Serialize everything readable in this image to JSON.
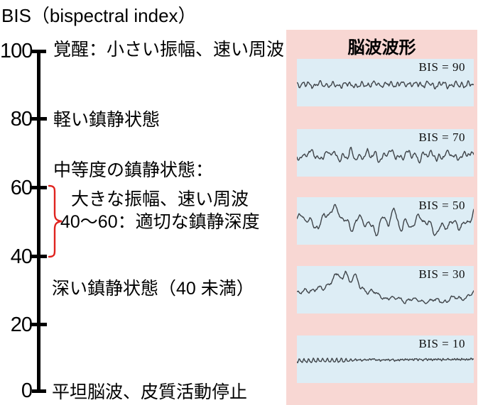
{
  "title": "BIS（bispectral index）",
  "axis": {
    "ticks": [
      "100",
      "80",
      "60",
      "40",
      "20",
      "0"
    ],
    "labels": {
      "awake": "覚醒：小さい振幅、速い周波",
      "light_sedation": "軽い鎮静状態",
      "moderate_line1": "中等度の鎮静状態：",
      "moderate_line2": "大きな振幅、速い周波",
      "moderate_line3": "40〜60：適切な鎮静深度",
      "deep_sedation": "深い鎮静状態（40 未満）",
      "flat_eeg": "平坦脳波、皮質活動停止"
    },
    "bracket_range": "40-60",
    "bracket_color": "#e0231e"
  },
  "panel": {
    "title": "脳波波形",
    "background": "#f8d7d3",
    "box_background": "#ddedf5",
    "wave_color": "#3f4449"
  },
  "waveforms": [
    {
      "label": "BIS = 90",
      "bis": 90,
      "character": "small amplitude, fast frequency",
      "profile": {
        "seed": 3,
        "noise": 0.02,
        "base": [
          [
            0,
            0.54
          ],
          [
            1,
            0.54
          ]
        ],
        "components": [
          {
            "freq": 30,
            "amp": 0.04
          },
          {
            "freq": 13,
            "amp": 0.03
          },
          {
            "freq": 55,
            "amp": 0.018
          }
        ]
      }
    },
    {
      "label": "BIS = 70",
      "bis": 70,
      "character": "medium amplitude with bursts",
      "profile": {
        "seed": 7,
        "noise": 0.025,
        "base": [
          [
            0,
            0.55
          ],
          [
            1,
            0.55
          ]
        ],
        "components": [
          {
            "freq": 22,
            "amp": 0.085,
            "env": true,
            "centers": [
              0.3,
              0.42,
              0.7
            ],
            "sigma": 0.05,
            "floor": 0.5
          },
          {
            "freq": 9,
            "amp": 0.06
          },
          {
            "freq": 42,
            "amp": 0.025
          }
        ]
      }
    },
    {
      "label": "BIS = 50",
      "bis": 50,
      "character": "large amplitude, fast frequency",
      "profile": {
        "seed": 11,
        "noise": 0.025,
        "base": [
          [
            0,
            0.5
          ],
          [
            0.08,
            0.55
          ],
          [
            0.16,
            0.4
          ],
          [
            0.24,
            0.35
          ],
          [
            0.32,
            0.55
          ],
          [
            0.4,
            0.6
          ],
          [
            0.5,
            0.5
          ],
          [
            0.6,
            0.5
          ],
          [
            0.68,
            0.55
          ],
          [
            0.78,
            0.6
          ],
          [
            0.88,
            0.65
          ],
          [
            0.95,
            0.5
          ],
          [
            1,
            0.3
          ]
        ],
        "components": [
          {
            "freq": 15,
            "amp": 0.16,
            "env": true,
            "centers": [
              0.5,
              0.57
            ],
            "sigma": 0.055,
            "floor": 0.45
          },
          {
            "freq": 6,
            "amp": 0.11
          },
          {
            "freq": 28,
            "amp": 0.035
          }
        ]
      }
    },
    {
      "label": "BIS = 30",
      "bis": 30,
      "character": "slow waves, single large hump",
      "profile": {
        "seed": 5,
        "noise": 0.02,
        "base": [
          [
            0,
            0.6
          ],
          [
            0.05,
            0.48
          ],
          [
            0.09,
            0.55
          ],
          [
            0.14,
            0.45
          ],
          [
            0.19,
            0.35
          ],
          [
            0.23,
            0.18
          ],
          [
            0.255,
            0.3
          ],
          [
            0.275,
            0.06
          ],
          [
            0.3,
            0.33
          ],
          [
            0.325,
            0.22
          ],
          [
            0.36,
            0.45
          ],
          [
            0.42,
            0.55
          ],
          [
            0.48,
            0.65
          ],
          [
            0.56,
            0.7
          ],
          [
            0.65,
            0.72
          ],
          [
            0.75,
            0.75
          ],
          [
            0.83,
            0.73
          ],
          [
            0.9,
            0.68
          ],
          [
            0.95,
            0.66
          ],
          [
            1,
            0.58
          ]
        ],
        "components": [
          {
            "freq": 24,
            "amp": 0.028
          },
          {
            "freq": 9,
            "amp": 0.032
          }
        ]
      }
    },
    {
      "label": "BIS = 10",
      "bis": 10,
      "character": "near-flat line",
      "profile": {
        "seed": 9,
        "noise": 0.01,
        "base": [
          [
            0,
            0.53
          ],
          [
            0.5,
            0.51
          ],
          [
            1,
            0.5
          ]
        ],
        "components": [
          {
            "freq": 38,
            "amp": 0.04,
            "env": true,
            "centers": [
              0,
              0.1,
              0.22
            ],
            "sigma": 0.08,
            "floor": 0.22
          },
          {
            "freq": 75,
            "amp": 0.012
          }
        ]
      }
    }
  ]
}
